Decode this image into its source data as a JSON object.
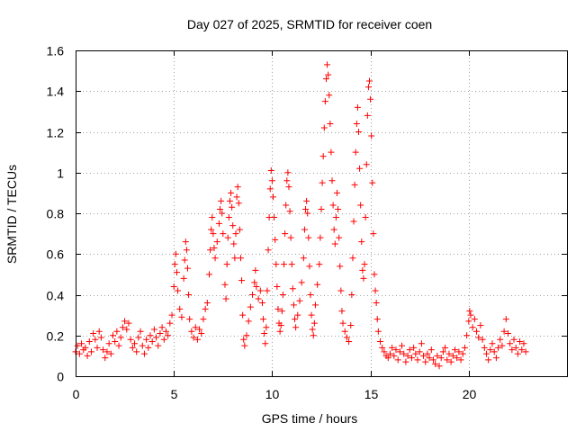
{
  "chart_data": {
    "type": "scatter",
    "title": "Day 027 of 2025, SRMTID for receiver coen",
    "xlabel": "GPS time / hours",
    "ylabel": "SRMTID / TECUs",
    "xlim": [
      0,
      25
    ],
    "ylim": [
      0,
      1.6
    ],
    "xticks": [
      0,
      5,
      10,
      15,
      20
    ],
    "xtick_labels": [
      "0",
      "5",
      "10",
      "15",
      "20"
    ],
    "yticks": [
      0,
      0.2,
      0.4,
      0.6,
      0.8,
      1.0,
      1.2,
      1.4,
      1.6
    ],
    "ytick_labels": [
      "0",
      "0.2",
      "0.4",
      "0.6",
      "0.8",
      "1",
      "1.2",
      "1.4",
      "1.6"
    ],
    "grid": true,
    "marker": "+",
    "color": "#ff0000",
    "series": [
      {
        "name": "SRMTID",
        "points": [
          [
            0.0,
            0.12
          ],
          [
            0.1,
            0.15
          ],
          [
            0.2,
            0.11
          ],
          [
            0.3,
            0.16
          ],
          [
            0.4,
            0.13
          ],
          [
            0.5,
            0.14
          ],
          [
            0.6,
            0.1
          ],
          [
            0.7,
            0.17
          ],
          [
            0.8,
            0.12
          ],
          [
            0.9,
            0.21
          ],
          [
            1.0,
            0.18
          ],
          [
            1.1,
            0.14
          ],
          [
            1.2,
            0.22
          ],
          [
            1.3,
            0.19
          ],
          [
            1.4,
            0.13
          ],
          [
            1.5,
            0.09
          ],
          [
            1.6,
            0.12
          ],
          [
            1.7,
            0.16
          ],
          [
            1.8,
            0.11
          ],
          [
            1.9,
            0.2
          ],
          [
            2.0,
            0.17
          ],
          [
            2.1,
            0.22
          ],
          [
            2.2,
            0.15
          ],
          [
            2.3,
            0.19
          ],
          [
            2.4,
            0.24
          ],
          [
            2.5,
            0.27
          ],
          [
            2.6,
            0.23
          ],
          [
            2.7,
            0.26
          ],
          [
            2.8,
            0.18
          ],
          [
            2.9,
            0.14
          ],
          [
            3.0,
            0.16
          ],
          [
            3.1,
            0.12
          ],
          [
            3.2,
            0.19
          ],
          [
            3.3,
            0.22
          ],
          [
            3.4,
            0.15
          ],
          [
            3.5,
            0.11
          ],
          [
            3.6,
            0.18
          ],
          [
            3.7,
            0.14
          ],
          [
            3.8,
            0.2
          ],
          [
            3.9,
            0.17
          ],
          [
            4.0,
            0.23
          ],
          [
            4.1,
            0.19
          ],
          [
            4.2,
            0.15
          ],
          [
            4.3,
            0.21
          ],
          [
            4.4,
            0.24
          ],
          [
            4.5,
            0.18
          ],
          [
            4.6,
            0.22
          ],
          [
            4.7,
            0.2
          ],
          [
            4.8,
            0.26
          ],
          [
            4.9,
            0.3
          ],
          [
            5.0,
            0.44
          ],
          [
            5.05,
            0.55
          ],
          [
            5.1,
            0.6
          ],
          [
            5.15,
            0.51
          ],
          [
            5.2,
            0.42
          ],
          [
            5.3,
            0.33
          ],
          [
            5.4,
            0.29
          ],
          [
            5.5,
            0.48
          ],
          [
            5.55,
            0.57
          ],
          [
            5.6,
            0.66
          ],
          [
            5.65,
            0.62
          ],
          [
            5.7,
            0.53
          ],
          [
            5.75,
            0.4
          ],
          [
            5.8,
            0.28
          ],
          [
            5.9,
            0.22
          ],
          [
            6.0,
            0.19
          ],
          [
            6.1,
            0.24
          ],
          [
            6.2,
            0.18
          ],
          [
            6.3,
            0.23
          ],
          [
            6.4,
            0.21
          ],
          [
            6.5,
            0.28
          ],
          [
            6.6,
            0.33
          ],
          [
            6.7,
            0.36
          ],
          [
            6.8,
            0.5
          ],
          [
            6.85,
            0.62
          ],
          [
            6.9,
            0.72
          ],
          [
            6.95,
            0.78
          ],
          [
            7.0,
            0.7
          ],
          [
            7.05,
            0.63
          ],
          [
            7.1,
            0.58
          ],
          [
            7.2,
            0.66
          ],
          [
            7.3,
            0.75
          ],
          [
            7.35,
            0.82
          ],
          [
            7.4,
            0.86
          ],
          [
            7.45,
            0.8
          ],
          [
            7.5,
            0.7
          ],
          [
            7.6,
            0.45
          ],
          [
            7.65,
            0.38
          ],
          [
            7.7,
            0.55
          ],
          [
            7.75,
            0.68
          ],
          [
            7.8,
            0.78
          ],
          [
            7.85,
            0.86
          ],
          [
            7.9,
            0.9
          ],
          [
            7.95,
            0.83
          ],
          [
            8.0,
            0.74
          ],
          [
            8.05,
            0.65
          ],
          [
            8.1,
            0.58
          ],
          [
            8.15,
            0.7
          ],
          [
            8.2,
            0.88
          ],
          [
            8.25,
            0.93
          ],
          [
            8.3,
            0.85
          ],
          [
            8.35,
            0.72
          ],
          [
            8.4,
            0.58
          ],
          [
            8.45,
            0.47
          ],
          [
            8.5,
            0.3
          ],
          [
            8.55,
            0.18
          ],
          [
            8.6,
            0.15
          ],
          [
            8.7,
            0.2
          ],
          [
            8.8,
            0.27
          ],
          [
            8.9,
            0.34
          ],
          [
            9.0,
            0.4
          ],
          [
            9.1,
            0.46
          ],
          [
            9.15,
            0.52
          ],
          [
            9.2,
            0.44
          ],
          [
            9.3,
            0.38
          ],
          [
            9.4,
            0.42
          ],
          [
            9.5,
            0.36
          ],
          [
            9.55,
            0.28
          ],
          [
            9.6,
            0.21
          ],
          [
            9.65,
            0.16
          ],
          [
            9.7,
            0.24
          ],
          [
            9.75,
            0.42
          ],
          [
            9.8,
            0.62
          ],
          [
            9.85,
            0.78
          ],
          [
            9.9,
            0.92
          ],
          [
            9.95,
            1.01
          ],
          [
            10.0,
            0.96
          ],
          [
            10.05,
            0.88
          ],
          [
            10.1,
            0.78
          ],
          [
            10.15,
            0.67
          ],
          [
            10.2,
            0.55
          ],
          [
            10.25,
            0.44
          ],
          [
            10.3,
            0.33
          ],
          [
            10.35,
            0.26
          ],
          [
            10.4,
            0.22
          ],
          [
            10.45,
            0.25
          ],
          [
            10.5,
            0.32
          ],
          [
            10.55,
            0.4
          ],
          [
            10.6,
            0.55
          ],
          [
            10.65,
            0.7
          ],
          [
            10.7,
            0.84
          ],
          [
            10.75,
            0.96
          ],
          [
            10.8,
            1.0
          ],
          [
            10.85,
            0.93
          ],
          [
            10.9,
            0.81
          ],
          [
            10.95,
            0.68
          ],
          [
            11.0,
            0.55
          ],
          [
            11.05,
            0.43
          ],
          [
            11.1,
            0.35
          ],
          [
            11.15,
            0.28
          ],
          [
            11.2,
            0.24
          ],
          [
            11.3,
            0.3
          ],
          [
            11.4,
            0.37
          ],
          [
            11.5,
            0.46
          ],
          [
            11.6,
            0.58
          ],
          [
            11.65,
            0.72
          ],
          [
            11.7,
            0.82
          ],
          [
            11.75,
            0.86
          ],
          [
            11.8,
            0.8
          ],
          [
            11.85,
            0.68
          ],
          [
            11.9,
            0.54
          ],
          [
            11.95,
            0.4
          ],
          [
            12.0,
            0.3
          ],
          [
            12.05,
            0.23
          ],
          [
            12.1,
            0.2
          ],
          [
            12.15,
            0.26
          ],
          [
            12.2,
            0.35
          ],
          [
            12.3,
            0.45
          ],
          [
            12.4,
            0.55
          ],
          [
            12.45,
            0.68
          ],
          [
            12.5,
            0.82
          ],
          [
            12.55,
            0.95
          ],
          [
            12.6,
            1.08
          ],
          [
            12.65,
            1.22
          ],
          [
            12.7,
            1.35
          ],
          [
            12.75,
            1.46
          ],
          [
            12.8,
            1.53
          ],
          [
            12.85,
            1.48
          ],
          [
            12.9,
            1.38
          ],
          [
            12.95,
            1.24
          ],
          [
            13.0,
            1.1
          ],
          [
            13.05,
            0.96
          ],
          [
            13.1,
            0.84
          ],
          [
            13.15,
            0.72
          ],
          [
            13.2,
            0.65
          ],
          [
            13.25,
            0.78
          ],
          [
            13.3,
            0.9
          ],
          [
            13.35,
            0.82
          ],
          [
            13.4,
            0.68
          ],
          [
            13.45,
            0.54
          ],
          [
            13.5,
            0.42
          ],
          [
            13.55,
            0.32
          ],
          [
            13.6,
            0.26
          ],
          [
            13.7,
            0.22
          ],
          [
            13.8,
            0.19
          ],
          [
            13.9,
            0.17
          ],
          [
            14.0,
            0.25
          ],
          [
            14.05,
            0.4
          ],
          [
            14.1,
            0.58
          ],
          [
            14.15,
            0.76
          ],
          [
            14.2,
            0.94
          ],
          [
            14.25,
            1.1
          ],
          [
            14.3,
            1.24
          ],
          [
            14.35,
            1.32
          ],
          [
            14.4,
            1.2
          ],
          [
            14.45,
            1.02
          ],
          [
            14.5,
            0.84
          ],
          [
            14.55,
            0.66
          ],
          [
            14.6,
            0.52
          ],
          [
            14.65,
            0.48
          ],
          [
            14.7,
            0.55
          ],
          [
            14.75,
            0.78
          ],
          [
            14.8,
            1.04
          ],
          [
            14.85,
            1.28
          ],
          [
            14.9,
            1.42
          ],
          [
            14.95,
            1.45
          ],
          [
            15.0,
            1.36
          ],
          [
            15.05,
            1.18
          ],
          [
            15.1,
            0.95
          ],
          [
            15.15,
            0.7
          ],
          [
            15.2,
            0.5
          ],
          [
            15.25,
            0.42
          ],
          [
            15.3,
            0.36
          ],
          [
            15.35,
            0.28
          ],
          [
            15.4,
            0.22
          ],
          [
            15.5,
            0.17
          ],
          [
            15.6,
            0.14
          ],
          [
            15.7,
            0.12
          ],
          [
            15.8,
            0.1
          ],
          [
            15.9,
            0.09
          ],
          [
            16.0,
            0.11
          ],
          [
            16.1,
            0.14
          ],
          [
            16.2,
            0.1
          ],
          [
            16.3,
            0.13
          ],
          [
            16.4,
            0.08
          ],
          [
            16.5,
            0.12
          ],
          [
            16.6,
            0.15
          ],
          [
            16.7,
            0.11
          ],
          [
            16.8,
            0.07
          ],
          [
            16.9,
            0.1
          ],
          [
            17.0,
            0.13
          ],
          [
            17.1,
            0.09
          ],
          [
            17.2,
            0.14
          ],
          [
            17.3,
            0.11
          ],
          [
            17.4,
            0.08
          ],
          [
            17.5,
            0.12
          ],
          [
            17.6,
            0.16
          ],
          [
            17.7,
            0.1
          ],
          [
            17.8,
            0.07
          ],
          [
            17.9,
            0.11
          ],
          [
            18.0,
            0.09
          ],
          [
            18.1,
            0.13
          ],
          [
            18.2,
            0.08
          ],
          [
            18.3,
            0.06
          ],
          [
            18.4,
            0.1
          ],
          [
            18.5,
            0.05
          ],
          [
            18.6,
            0.09
          ],
          [
            18.7,
            0.12
          ],
          [
            18.8,
            0.14
          ],
          [
            18.9,
            0.08
          ],
          [
            19.0,
            0.11
          ],
          [
            19.1,
            0.07
          ],
          [
            19.2,
            0.1
          ],
          [
            19.3,
            0.13
          ],
          [
            19.4,
            0.09
          ],
          [
            19.5,
            0.12
          ],
          [
            19.6,
            0.08
          ],
          [
            19.7,
            0.11
          ],
          [
            19.8,
            0.14
          ],
          [
            19.9,
            0.2
          ],
          [
            20.0,
            0.27
          ],
          [
            20.05,
            0.32
          ],
          [
            20.1,
            0.3
          ],
          [
            20.2,
            0.24
          ],
          [
            20.3,
            0.28
          ],
          [
            20.4,
            0.22
          ],
          [
            20.5,
            0.19
          ],
          [
            20.6,
            0.25
          ],
          [
            20.7,
            0.18
          ],
          [
            20.8,
            0.14
          ],
          [
            20.9,
            0.11
          ],
          [
            21.0,
            0.08
          ],
          [
            21.1,
            0.13
          ],
          [
            21.2,
            0.16
          ],
          [
            21.3,
            0.12
          ],
          [
            21.4,
            0.09
          ],
          [
            21.5,
            0.14
          ],
          [
            21.6,
            0.18
          ],
          [
            21.7,
            0.15
          ],
          [
            21.8,
            0.22
          ],
          [
            21.9,
            0.28
          ],
          [
            22.0,
            0.21
          ],
          [
            22.1,
            0.16
          ],
          [
            22.2,
            0.13
          ],
          [
            22.3,
            0.18
          ],
          [
            22.4,
            0.14
          ],
          [
            22.5,
            0.11
          ],
          [
            22.6,
            0.17
          ],
          [
            22.7,
            0.13
          ],
          [
            22.8,
            0.16
          ],
          [
            22.9,
            0.12
          ]
        ]
      }
    ]
  }
}
